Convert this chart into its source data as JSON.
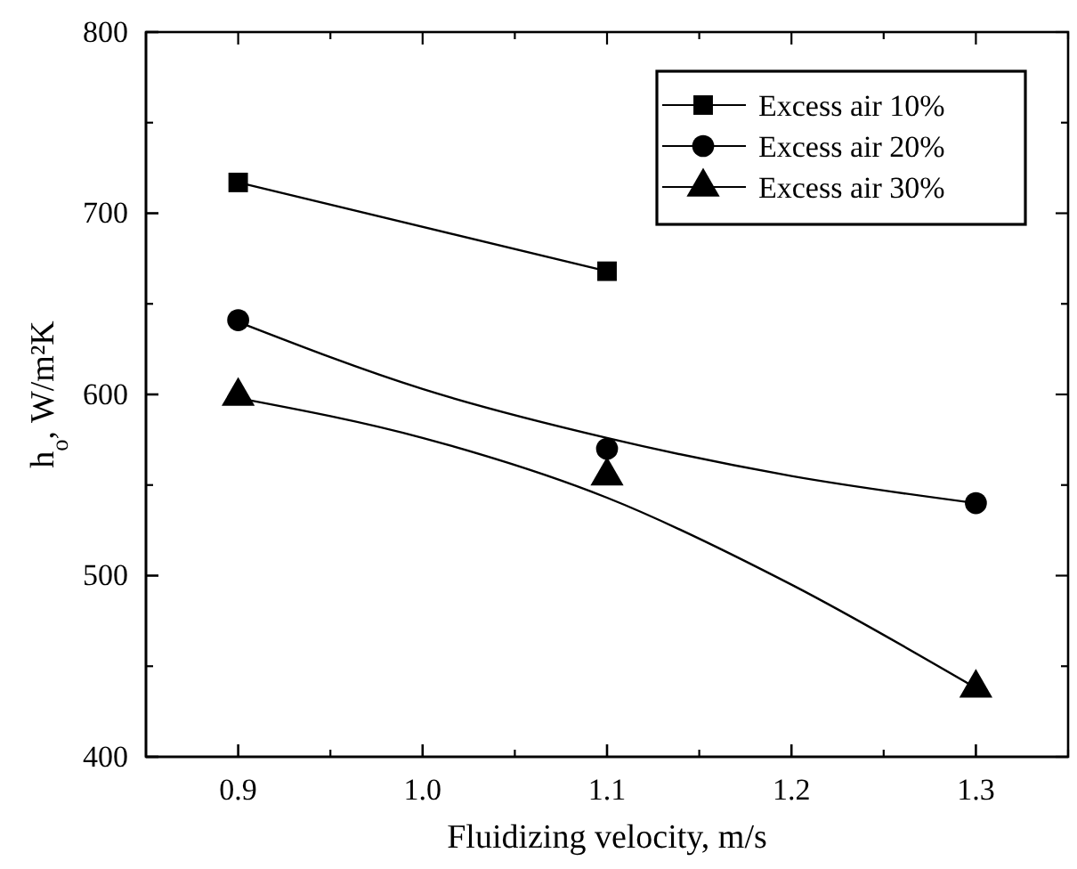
{
  "chart_data": {
    "type": "scatter",
    "xlabel": "Fluidizing velocity, m/s",
    "ylabel": "h$_{o}$, W/m²K",
    "xlim": [
      0.85,
      1.35
    ],
    "xticks": [
      0.9,
      {
        "value": 1.0,
        "label": "1.0"
      },
      1.1,
      1.2,
      1.3
    ],
    "ylim": [
      400,
      800
    ],
    "yticks": [
      400,
      500,
      600,
      700,
      800
    ],
    "grid": false,
    "legend": "top right",
    "series": [
      {
        "name": "Excess air 10%",
        "marker": "square",
        "color": "#000000",
        "x": [
          0.9,
          1.1
        ],
        "values": [
          717,
          668
        ]
      },
      {
        "name": "Excess air 20%",
        "marker": "circle",
        "color": "#000000",
        "x": [
          0.9,
          1.1,
          1.3
        ],
        "values": [
          641,
          570,
          540
        ]
      },
      {
        "name": "Excess air 30%",
        "marker": "triangle",
        "color": "#000000",
        "x": [
          0.9,
          1.1,
          1.3
        ],
        "values": [
          599,
          555,
          438
        ]
      },
      {
        "type": "line",
        "marker": "none",
        "line_style": "solid",
        "color": "#000000",
        "x": [
          0.9,
          1.1
        ],
        "values": [
          717,
          668
        ]
      },
      {
        "type": "line",
        "marker": "none",
        "line_style": "solid",
        "color": "#000000",
        "x": [
          0.9,
          1.0,
          1.1,
          1.2,
          1.3
        ],
        "values": [
          640,
          603,
          576,
          555,
          540
        ]
      },
      {
        "type": "line",
        "marker": "none",
        "line_style": "solid",
        "color": "#000000",
        "x": [
          0.9,
          1.0,
          1.1,
          1.2,
          1.3
        ],
        "values": [
          598,
          576,
          543,
          495,
          438
        ]
      }
    ]
  }
}
